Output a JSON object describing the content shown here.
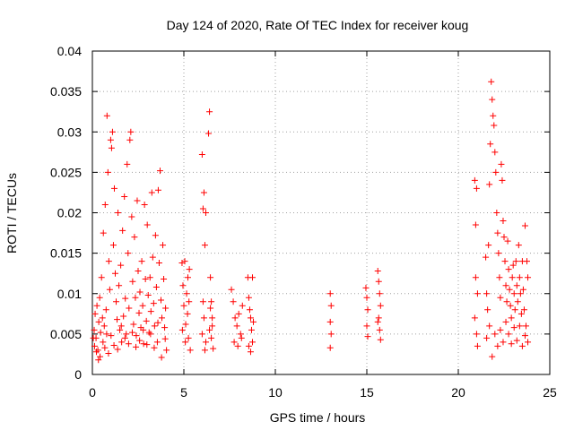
{
  "chart_data": {
    "type": "scatter",
    "title": "Day 124 of 2020, Rate Of TEC Index for receiver koug",
    "xlabel": "GPS time / hours",
    "ylabel": "ROTI / TECUs",
    "xlim": [
      0,
      25
    ],
    "ylim": [
      0,
      0.04
    ],
    "xticks": [
      0,
      5,
      10,
      15,
      20,
      25
    ],
    "xtick_labels": [
      "0",
      "5",
      "10",
      "15",
      "20",
      "25"
    ],
    "yticks": [
      0,
      0.005,
      0.01,
      0.015,
      0.02,
      0.025,
      0.03,
      0.035,
      0.04
    ],
    "ytick_labels": [
      "0",
      "0.005",
      "0.01",
      "0.015",
      "0.02",
      "0.025",
      "0.03",
      "0.035",
      "0.04"
    ],
    "grid": true,
    "marker": "+",
    "series": [
      {
        "name": "ROTI",
        "color": "#ff0000",
        "points": [
          [
            0.1,
            0.0055
          ],
          [
            0.15,
            0.0075
          ],
          [
            0.2,
            0.0045
          ],
          [
            0.25,
            0.0085
          ],
          [
            0.3,
            0.003
          ],
          [
            0.35,
            0.0065
          ],
          [
            0.4,
            0.0095
          ],
          [
            0.45,
            0.0052
          ],
          [
            0.5,
            0.012
          ],
          [
            0.55,
            0.007
          ],
          [
            0.6,
            0.0175
          ],
          [
            0.65,
            0.006
          ],
          [
            0.7,
            0.021
          ],
          [
            0.75,
            0.008
          ],
          [
            0.8,
            0.032
          ],
          [
            0.85,
            0.025
          ],
          [
            0.9,
            0.014
          ],
          [
            0.95,
            0.0105
          ],
          [
            1.0,
            0.029
          ],
          [
            1.05,
            0.028
          ],
          [
            1.1,
            0.03
          ],
          [
            1.15,
            0.016
          ],
          [
            1.2,
            0.023
          ],
          [
            1.25,
            0.0125
          ],
          [
            1.3,
            0.009
          ],
          [
            1.35,
            0.0068
          ],
          [
            1.4,
            0.02
          ],
          [
            1.45,
            0.011
          ],
          [
            1.5,
            0.0055
          ],
          [
            1.55,
            0.0135
          ],
          [
            1.6,
            0.004
          ],
          [
            1.65,
            0.0178
          ],
          [
            1.7,
            0.0072
          ],
          [
            1.75,
            0.022
          ],
          [
            1.8,
            0.0094
          ],
          [
            1.85,
            0.005
          ],
          [
            1.9,
            0.026
          ],
          [
            1.95,
            0.015
          ],
          [
            2.0,
            0.0082
          ],
          [
            2.05,
            0.029
          ],
          [
            2.1,
            0.03
          ],
          [
            2.15,
            0.0195
          ],
          [
            2.2,
            0.0115
          ],
          [
            2.25,
            0.0062
          ],
          [
            2.3,
            0.017
          ],
          [
            2.35,
            0.0095
          ],
          [
            2.4,
            0.0048
          ],
          [
            2.45,
            0.0215
          ],
          [
            2.5,
            0.0128
          ],
          [
            2.55,
            0.0076
          ],
          [
            2.6,
            0.0102
          ],
          [
            2.65,
            0.0058
          ],
          [
            2.7,
            0.014
          ],
          [
            2.75,
            0.0085
          ],
          [
            2.8,
            0.0038
          ],
          [
            2.85,
            0.021
          ],
          [
            2.9,
            0.0118
          ],
          [
            2.95,
            0.0066
          ],
          [
            3.0,
            0.0185
          ],
          [
            3.05,
            0.0098
          ],
          [
            3.1,
            0.0052
          ],
          [
            3.15,
            0.012
          ],
          [
            3.2,
            0.0078
          ],
          [
            3.25,
            0.0225
          ],
          [
            3.3,
            0.0145
          ],
          [
            3.35,
            0.0088
          ],
          [
            3.4,
            0.006
          ],
          [
            3.45,
            0.0172
          ],
          [
            3.5,
            0.0108
          ],
          [
            3.55,
            0.004
          ],
          [
            3.6,
            0.0228
          ],
          [
            3.65,
            0.0138
          ],
          [
            3.7,
            0.0252
          ],
          [
            3.75,
            0.0092
          ],
          [
            3.8,
            0.007
          ],
          [
            3.85,
            0.016
          ],
          [
            3.9,
            0.0118
          ],
          [
            3.95,
            0.0058
          ],
          [
            4.0,
            0.0082
          ],
          [
            4.05,
            0.003
          ],
          [
            0.05,
            0.0045
          ],
          [
            0.12,
            0.0035
          ],
          [
            0.22,
            0.0028
          ],
          [
            0.33,
            0.0018
          ],
          [
            0.42,
            0.0022
          ],
          [
            0.58,
            0.004
          ],
          [
            0.68,
            0.0033
          ],
          [
            0.78,
            0.005
          ],
          [
            0.88,
            0.0026
          ],
          [
            1.02,
            0.0048
          ],
          [
            1.18,
            0.0036
          ],
          [
            1.38,
            0.0031
          ],
          [
            1.58,
            0.006
          ],
          [
            1.78,
            0.0045
          ],
          [
            1.98,
            0.0038
          ],
          [
            2.18,
            0.0052
          ],
          [
            2.38,
            0.0034
          ],
          [
            2.58,
            0.0042
          ],
          [
            2.78,
            0.0055
          ],
          [
            2.98,
            0.0037
          ],
          [
            3.18,
            0.005
          ],
          [
            3.38,
            0.0033
          ],
          [
            3.58,
            0.0064
          ],
          [
            3.78,
            0.0021
          ],
          [
            3.98,
            0.0044
          ],
          [
            4.9,
            0.0138
          ],
          [
            4.95,
            0.011
          ],
          [
            5.0,
            0.0085
          ],
          [
            5.05,
            0.014
          ],
          [
            5.1,
            0.0062
          ],
          [
            5.15,
            0.01
          ],
          [
            5.2,
            0.0075
          ],
          [
            5.25,
            0.0045
          ],
          [
            5.3,
            0.013
          ],
          [
            5.35,
            0.003
          ],
          [
            4.92,
            0.0055
          ],
          [
            5.08,
            0.004
          ],
          [
            5.22,
            0.012
          ],
          [
            5.28,
            0.009
          ],
          [
            6.0,
            0.0272
          ],
          [
            6.05,
            0.0205
          ],
          [
            6.1,
            0.0225
          ],
          [
            6.15,
            0.016
          ],
          [
            6.2,
            0.02
          ],
          [
            6.05,
            0.009
          ],
          [
            6.1,
            0.007
          ],
          [
            6.0,
            0.005
          ],
          [
            6.2,
            0.004
          ],
          [
            6.15,
            0.003
          ],
          [
            6.4,
            0.0325
          ],
          [
            6.35,
            0.0298
          ],
          [
            6.45,
            0.012
          ],
          [
            6.5,
            0.009
          ],
          [
            6.55,
            0.007
          ],
          [
            6.4,
            0.0055
          ],
          [
            6.5,
            0.0045
          ],
          [
            6.6,
            0.0032
          ],
          [
            6.45,
            0.0082
          ],
          [
            6.55,
            0.006
          ],
          [
            7.6,
            0.0105
          ],
          [
            7.7,
            0.009
          ],
          [
            7.8,
            0.007
          ],
          [
            7.9,
            0.006
          ],
          [
            8.0,
            0.0075
          ],
          [
            8.1,
            0.005
          ],
          [
            8.2,
            0.0085
          ],
          [
            7.75,
            0.004
          ],
          [
            7.95,
            0.0035
          ],
          [
            8.15,
            0.0045
          ],
          [
            8.5,
            0.012
          ],
          [
            8.55,
            0.0095
          ],
          [
            8.6,
            0.008
          ],
          [
            8.65,
            0.007
          ],
          [
            8.7,
            0.0055
          ],
          [
            8.75,
            0.012
          ],
          [
            8.8,
            0.0065
          ],
          [
            8.55,
            0.0035
          ],
          [
            8.65,
            0.0028
          ],
          [
            8.75,
            0.004
          ],
          [
            13.0,
            0.01
          ],
          [
            13.05,
            0.0085
          ],
          [
            13.0,
            0.0065
          ],
          [
            13.05,
            0.005
          ],
          [
            13.0,
            0.0033
          ],
          [
            14.95,
            0.0107
          ],
          [
            15.0,
            0.0095
          ],
          [
            15.05,
            0.008
          ],
          [
            15.0,
            0.006
          ],
          [
            15.05,
            0.0047
          ],
          [
            15.6,
            0.0128
          ],
          [
            15.65,
            0.0115
          ],
          [
            15.7,
            0.01
          ],
          [
            15.75,
            0.0085
          ],
          [
            15.65,
            0.007
          ],
          [
            15.7,
            0.0055
          ],
          [
            15.75,
            0.0043
          ],
          [
            15.6,
            0.0065
          ],
          [
            20.9,
            0.024
          ],
          [
            20.95,
            0.0185
          ],
          [
            21.0,
            0.023
          ],
          [
            21.05,
            0.01
          ],
          [
            20.9,
            0.007
          ],
          [
            21.0,
            0.005
          ],
          [
            21.05,
            0.0035
          ],
          [
            20.95,
            0.012
          ],
          [
            21.5,
            0.0145
          ],
          [
            21.55,
            0.01
          ],
          [
            21.6,
            0.008
          ],
          [
            21.65,
            0.016
          ],
          [
            21.7,
            0.0235
          ],
          [
            21.75,
            0.0285
          ],
          [
            21.8,
            0.0362
          ],
          [
            21.85,
            0.034
          ],
          [
            21.9,
            0.032
          ],
          [
            21.95,
            0.0308
          ],
          [
            22.0,
            0.0275
          ],
          [
            22.05,
            0.025
          ],
          [
            22.1,
            0.02
          ],
          [
            22.15,
            0.0175
          ],
          [
            22.2,
            0.015
          ],
          [
            22.25,
            0.012
          ],
          [
            22.3,
            0.0095
          ],
          [
            22.35,
            0.026
          ],
          [
            22.4,
            0.024
          ],
          [
            22.45,
            0.019
          ],
          [
            22.5,
            0.017
          ],
          [
            22.55,
            0.014
          ],
          [
            22.6,
            0.011
          ],
          [
            22.65,
            0.009
          ],
          [
            22.7,
            0.0165
          ],
          [
            22.75,
            0.013
          ],
          [
            22.8,
            0.0105
          ],
          [
            22.85,
            0.0085
          ],
          [
            22.9,
            0.007
          ],
          [
            22.95,
            0.012
          ],
          [
            23.0,
            0.0135
          ],
          [
            23.05,
            0.01
          ],
          [
            23.1,
            0.008
          ],
          [
            23.15,
            0.014
          ],
          [
            23.2,
            0.011
          ],
          [
            23.25,
            0.009
          ],
          [
            23.3,
            0.016
          ],
          [
            23.35,
            0.012
          ],
          [
            23.4,
            0.01
          ],
          [
            23.45,
            0.0075
          ],
          [
            23.5,
            0.014
          ],
          [
            23.55,
            0.0105
          ],
          [
            23.6,
            0.008
          ],
          [
            23.65,
            0.0184
          ],
          [
            23.7,
            0.006
          ],
          [
            23.75,
            0.014
          ],
          [
            23.8,
            0.012
          ],
          [
            21.55,
            0.0045
          ],
          [
            21.7,
            0.006
          ],
          [
            21.85,
            0.0022
          ],
          [
            22.0,
            0.005
          ],
          [
            22.15,
            0.0035
          ],
          [
            22.3,
            0.0055
          ],
          [
            22.45,
            0.004
          ],
          [
            22.6,
            0.0065
          ],
          [
            22.75,
            0.005
          ],
          [
            22.9,
            0.0038
          ],
          [
            23.05,
            0.0058
          ],
          [
            23.2,
            0.0042
          ],
          [
            23.35,
            0.006
          ],
          [
            23.5,
            0.0035
          ],
          [
            23.65,
            0.0048
          ],
          [
            23.8,
            0.004
          ]
        ]
      }
    ]
  }
}
